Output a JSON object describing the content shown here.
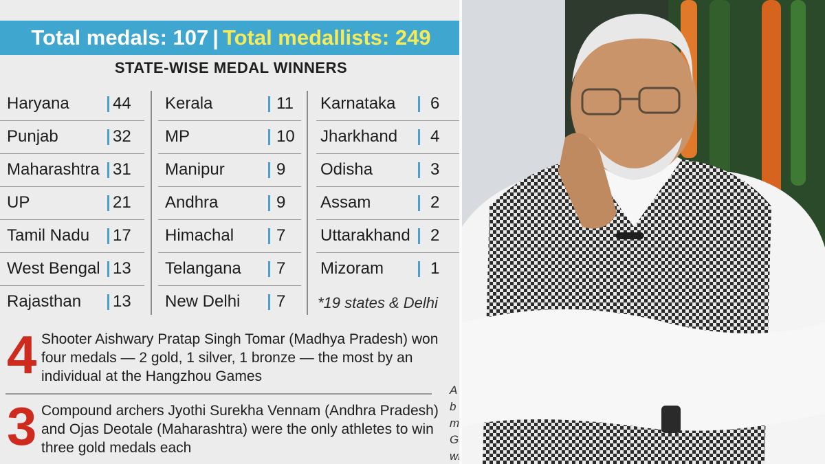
{
  "banner": {
    "total_medals": "Total medals: 107",
    "separator": "|",
    "total_medallists": "Total medallists: 249"
  },
  "table_title": "STATE-WISE MEDAL WINNERS",
  "columns": [
    [
      {
        "state": "Haryana",
        "medals": "44"
      },
      {
        "state": "Punjab",
        "medals": "32"
      },
      {
        "state": "Maharashtra",
        "medals": "31"
      },
      {
        "state": "UP",
        "medals": "21"
      },
      {
        "state": "Tamil Nadu",
        "medals": "17"
      },
      {
        "state": "West Bengal",
        "medals": "13"
      },
      {
        "state": "Rajasthan",
        "medals": "13"
      }
    ],
    [
      {
        "state": "Kerala",
        "medals": "11"
      },
      {
        "state": "MP",
        "medals": "10"
      },
      {
        "state": "Manipur",
        "medals": "9"
      },
      {
        "state": "Andhra",
        "medals": "9"
      },
      {
        "state": "Himachal",
        "medals": "7"
      },
      {
        "state": "Telangana",
        "medals": "7"
      },
      {
        "state": "New Delhi",
        "medals": "7"
      }
    ],
    [
      {
        "state": "Karnataka",
        "medals": "6"
      },
      {
        "state": "Jharkhand",
        "medals": "4"
      },
      {
        "state": "Odisha",
        "medals": "3"
      },
      {
        "state": "Assam",
        "medals": "2"
      },
      {
        "state": "Uttarakhand",
        "medals": "2"
      },
      {
        "state": "Mizoram",
        "medals": "1"
      }
    ]
  ],
  "footnote": "*19 states & Delhi",
  "facts": [
    {
      "number": "4",
      "text": "Shooter Aishwary Pratap Singh Tomar (Madhya Pradesh) won four medals — 2 gold, 1 silver, 1 bronze — the most by an individual at the Hangzhou Games"
    },
    {
      "number": "3",
      "text": "Compound archers Jyothi Surekha Vennam (Andhra Pradesh) and Ojas Deotale (Maharashtra) were the only athletes to win three gold medals each"
    }
  ],
  "edge_text": "A b m Ga wh",
  "colors": {
    "banner_bg": "#3fa6cf",
    "banner_highlight": "#f4ea5a",
    "fact_number": "#cf2a1e",
    "paper": "#ececec"
  }
}
